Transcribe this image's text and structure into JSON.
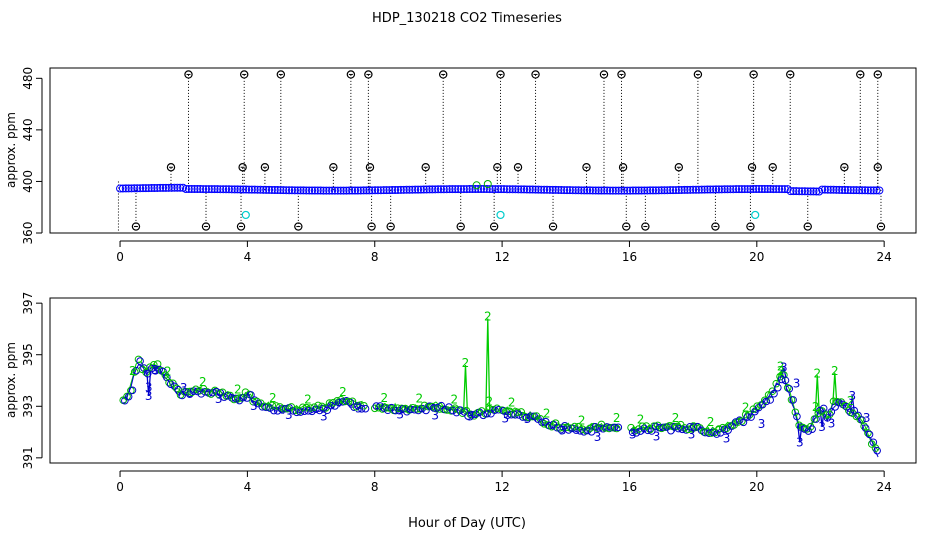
{
  "chart_data": {
    "title": "HDP_130218  CO2 Timeseries",
    "xlabel": "Hour of Day (UTC)",
    "panels": [
      {
        "type": "scatter",
        "ylabel": "approx. ppm",
        "xlim": [
          -2.2,
          25
        ],
        "ylim": [
          360,
          488
        ],
        "x_ticks": [
          0,
          4,
          8,
          12,
          16,
          20,
          24
        ],
        "y_ticks": [
          360,
          400,
          440,
          480
        ],
        "series": [
          {
            "name": "baseline",
            "color": "#0000ff",
            "level": 393.5
          },
          {
            "name": "flag-high",
            "color": "#000000",
            "value": 483,
            "x": [
              2.15,
              3.9,
              5.05,
              7.25,
              7.8,
              10.15,
              11.95,
              13.05,
              15.2,
              15.75,
              18.15,
              19.9,
              21.05,
              23.25,
              23.8
            ]
          },
          {
            "name": "flag-mid",
            "color": "#000000",
            "value": 411,
            "x": [
              1.6,
              3.85,
              4.55,
              6.7,
              7.85,
              9.6,
              11.85,
              12.5,
              14.65,
              15.8,
              17.55,
              19.85,
              20.5,
              22.75,
              23.8
            ]
          },
          {
            "name": "flag-low",
            "color": "#000000",
            "value": 365,
            "x": [
              0.5,
              2.7,
              3.8,
              5.6,
              7.9,
              8.5,
              10.7,
              11.75,
              13.6,
              15.9,
              16.5,
              18.7,
              19.8,
              21.6,
              23.9
            ]
          },
          {
            "name": "cyan",
            "color": "#00cccc",
            "points": [
              [
                3.95,
                374
              ],
              [
                11.95,
                374
              ],
              [
                19.95,
                374
              ]
            ]
          }
        ]
      },
      {
        "type": "line",
        "ylabel": "approx. ppm",
        "xlim": [
          -2.2,
          25
        ],
        "ylim": [
          390.8,
          397.2
        ],
        "x_ticks": [
          0,
          4,
          8,
          12,
          16,
          20,
          24
        ],
        "y_ticks": [
          391,
          393,
          395,
          397
        ],
        "series": [
          {
            "name": "2",
            "color": "#00cc00",
            "marker": "2",
            "spikes": [
              [
                10.85,
                394.6
              ],
              [
                11.55,
                396.4
              ],
              [
                20.75,
                394.3
              ],
              [
                21.9,
                394.2
              ],
              [
                22.45,
                394.3
              ]
            ]
          },
          {
            "name": "3",
            "color": "#0000cc",
            "marker": "3",
            "spikes": [
              [
                0.9,
                393.4
              ],
              [
                1.1,
                394.4
              ],
              [
                20.85,
                394.5
              ],
              [
                21.35,
                391.6
              ],
              [
                22.05,
                392.2
              ],
              [
                23.0,
                393.4
              ]
            ]
          }
        ],
        "profile": [
          [
            0.1,
            393.2
          ],
          [
            0.3,
            393.5
          ],
          [
            0.55,
            394.8
          ],
          [
            0.8,
            394.3
          ],
          [
            1.15,
            394.6
          ],
          [
            1.5,
            394.0
          ],
          [
            1.9,
            393.5
          ],
          [
            2.5,
            393.6
          ],
          [
            3.2,
            393.5
          ],
          [
            3.7,
            393.3
          ],
          [
            4.0,
            393.5
          ],
          [
            4.3,
            393.1
          ],
          [
            5.0,
            392.9
          ],
          [
            6.0,
            392.9
          ],
          [
            6.5,
            393.0
          ],
          [
            7.0,
            393.2
          ],
          [
            7.7,
            393.0
          ],
          null,
          [
            8.0,
            393.0
          ],
          [
            9.0,
            392.9
          ],
          [
            10.0,
            393.0
          ],
          [
            10.5,
            392.9
          ],
          [
            11.0,
            392.7
          ],
          [
            11.5,
            392.8
          ],
          [
            11.9,
            392.9
          ],
          null,
          [
            12.0,
            392.8
          ],
          [
            12.4,
            392.8
          ],
          [
            13.0,
            392.6
          ],
          [
            13.5,
            392.3
          ],
          [
            14.0,
            392.2
          ],
          [
            14.5,
            392.1
          ],
          [
            15.0,
            392.2
          ],
          [
            15.7,
            392.2
          ],
          null,
          [
            16.05,
            392.1
          ],
          [
            17.0,
            392.2
          ],
          [
            18.0,
            392.2
          ],
          [
            18.7,
            392.0
          ],
          [
            19.2,
            392.3
          ],
          [
            19.8,
            392.7
          ],
          [
            20.2,
            393.1
          ],
          [
            20.5,
            393.6
          ],
          [
            20.8,
            394.3
          ],
          [
            21.0,
            393.6
          ],
          [
            21.3,
            392.3
          ],
          [
            21.6,
            392.0
          ],
          [
            21.8,
            392.5
          ],
          [
            22.0,
            393.0
          ],
          [
            22.2,
            392.5
          ],
          [
            22.4,
            393.1
          ],
          [
            22.6,
            393.2
          ],
          [
            22.9,
            392.9
          ],
          [
            23.2,
            392.6
          ],
          [
            23.5,
            391.9
          ],
          [
            23.7,
            391.4
          ],
          [
            23.85,
            391.1
          ]
        ]
      }
    ]
  }
}
